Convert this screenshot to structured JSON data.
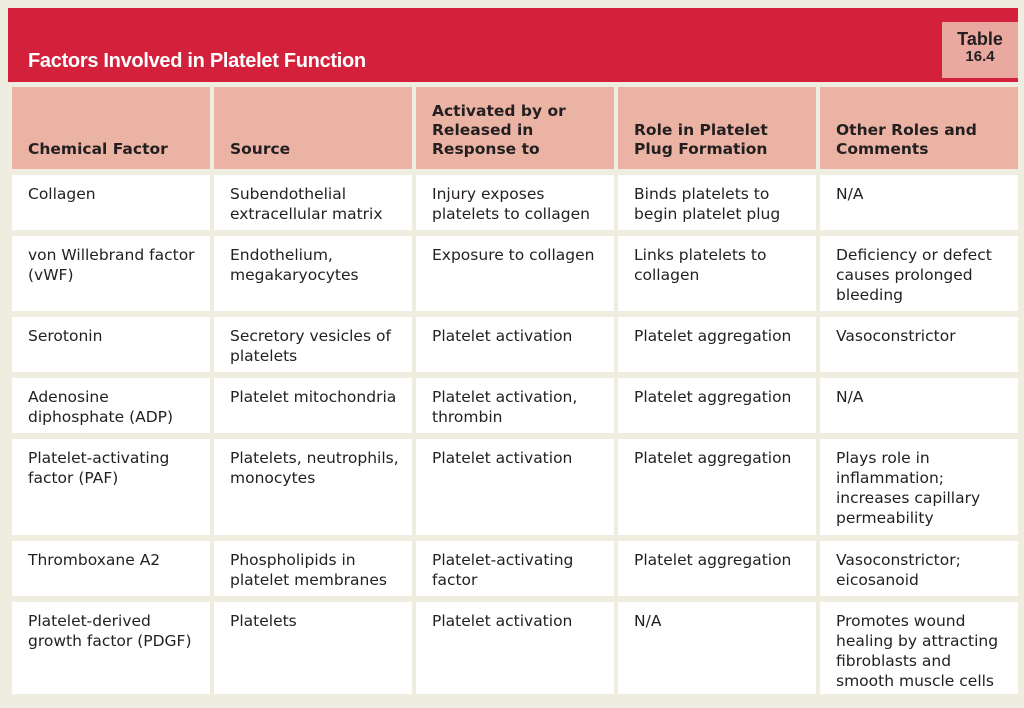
{
  "header": {
    "title": "Factors Involved in Platelet Function",
    "badge_word": "Table",
    "badge_number": "16.4"
  },
  "table": {
    "columns": [
      "Chemical Factor",
      "Source",
      "Activated by or Released in Response to",
      "Role in Platelet Plug Formation",
      "Other Roles and Comments"
    ],
    "rows": [
      [
        "Collagen",
        "Subendothelial extracellular matrix",
        "Injury exposes platelets to collagen",
        "Binds platelets to begin platelet plug",
        "N/A"
      ],
      [
        "von Willebrand factor (vWF)",
        "Endothelium, megakaryocytes",
        "Exposure to collagen",
        "Links platelets to collagen",
        "Deficiency or defect causes prolonged bleeding"
      ],
      [
        "Serotonin",
        "Secretory vesicles of platelets",
        "Platelet activation",
        "Platelet aggregation",
        "Vasoconstrictor"
      ],
      [
        "Adenosine diphosphate (ADP)",
        "Platelet mitochondria",
        "Platelet activation, thrombin",
        "Platelet aggregation",
        "N/A"
      ],
      [
        "Platelet-activating factor (PAF)",
        "Platelets, neutrophils, monocytes",
        "Platelet activation",
        "Platelet aggregation",
        "Plays role in inflammation; increases capillary permeability"
      ],
      [
        "Thromboxane A2",
        "Phospholipids in platelet membranes",
        "Platelet-activating factor",
        "Platelet aggregation",
        "Vasoconstrictor; eicosanoid"
      ],
      [
        "Platelet-derived growth factor (PDGF)",
        "Platelets",
        "Platelet activation",
        "N/A",
        "Promotes wound healing by attracting fibroblasts and smooth muscle cells"
      ]
    ]
  },
  "colors": {
    "header_red": "#d3213c",
    "badge_pink": "#e9a9a0",
    "column_header_salmon": "#ebb3a4",
    "page_background": "#efece0",
    "cell_background": "#ffffff"
  }
}
